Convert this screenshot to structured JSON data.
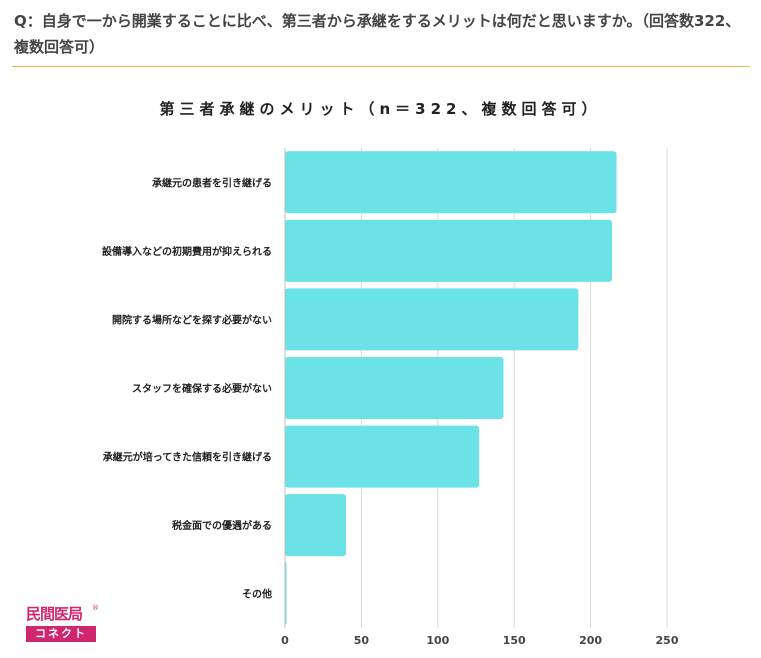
{
  "question": "Q：自身で一から開業することに比べ、第三者から承継をするメリットは何だと思いますか。（回答数322、複数回答可）",
  "logo": {
    "top_text": "民間医局",
    "bottom_text": "コネクト",
    "mark": "®"
  },
  "colors": {
    "bar": "#6ae2e6",
    "rule": "#e8b84a",
    "brand": "#d0266e",
    "grid": "#d9d9d9"
  },
  "chart_data": {
    "type": "bar",
    "orientation": "horizontal",
    "title": "第三者承継のメリット（n＝322、複数回答可）",
    "categories": [
      "承継元の患者を引き継げる",
      "設備導入などの初期費用が抑えられる",
      "開院する場所などを探す必要がない",
      "スタッフを確保する必要がない",
      "承継元が培ってきた信頼を引き継げる",
      "税金面での優遇がある",
      "その他"
    ],
    "values": [
      217,
      214,
      192,
      143,
      127,
      40,
      1
    ],
    "xlim": [
      0,
      250
    ],
    "xticks": [
      0,
      50,
      100,
      150,
      200,
      250
    ],
    "grid": true,
    "legend": "none"
  }
}
